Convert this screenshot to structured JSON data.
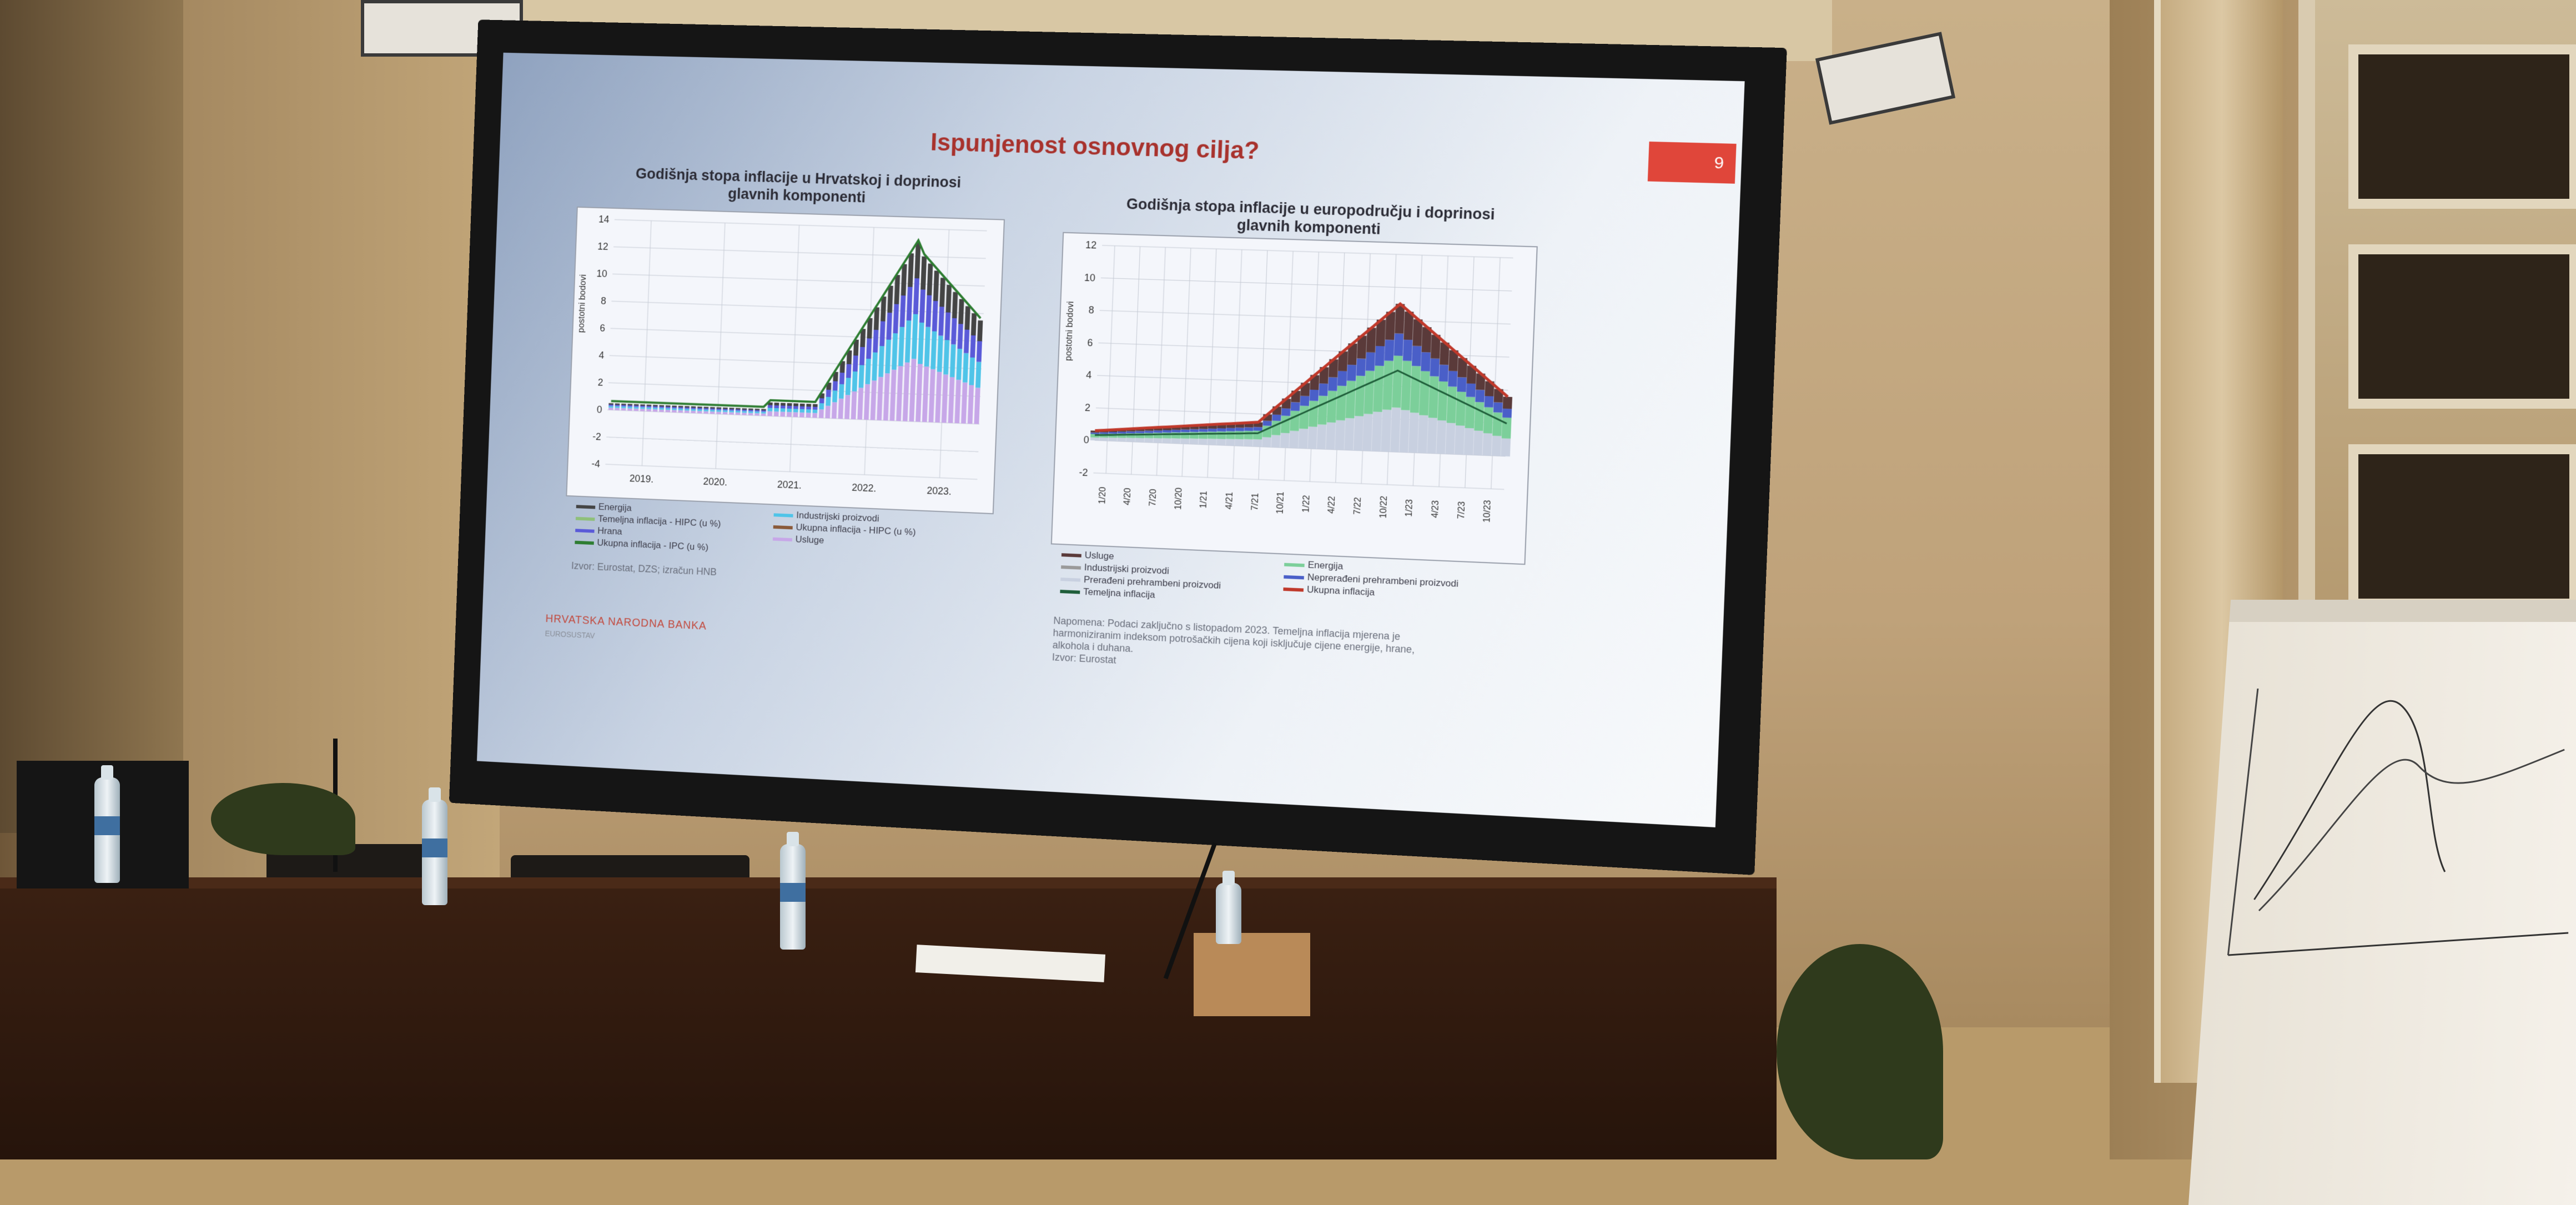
{
  "slide": {
    "title": "Ispunjenost osnovnog cilja?",
    "page_number": "9",
    "footer_org": "HRVATSKA NARODNA BANKA",
    "footer_sub": "EUROSUSTAV"
  },
  "left_chart": {
    "title_line1": "Godišnja stopa inflacije u Hrvatskoj i doprinosi",
    "title_line2": "glavnih komponenti",
    "ylabel": "postotni bodovi",
    "yticks": [
      "14",
      "12",
      "10",
      "8",
      "6",
      "4",
      "2",
      "0",
      "-2",
      "-4"
    ],
    "xticks": [
      "2019.",
      "2020.",
      "2021.",
      "2022.",
      "2023."
    ],
    "legend": [
      {
        "label": "Energija",
        "color": "#444444"
      },
      {
        "label": "Industrijski proizvodi",
        "color": "#4fc4e8"
      },
      {
        "label": "Temeljna inflacija - HIPC (u %)",
        "color": "#8fc07a"
      },
      {
        "label": "Ukupna inflacija - HIPC (u %)",
        "color": "#8a5a3a"
      },
      {
        "label": "Hrana",
        "color": "#5a5ad8"
      },
      {
        "label": "Usluge",
        "color": "#c7a7e8"
      },
      {
        "label": "Ukupna inflacija - IPC (u %)",
        "color": "#2e7d32"
      }
    ],
    "source": "Izvor: Eurostat, DZS; izračun HNB"
  },
  "right_chart": {
    "title_line1": "Godišnja stopa inflacije u europodručju i doprinosi",
    "title_line2": "glavnih komponenti",
    "ylabel": "postotni bodovi",
    "yticks": [
      "12",
      "10",
      "8",
      "6",
      "4",
      "2",
      "0",
      "-2"
    ],
    "xticks": [
      "1/20",
      "4/20",
      "7/20",
      "10/20",
      "1/21",
      "4/21",
      "7/21",
      "10/21",
      "1/22",
      "4/22",
      "7/22",
      "10/22",
      "1/23",
      "4/23",
      "7/23",
      "10/23"
    ],
    "legend": [
      {
        "label": "Usluge",
        "color": "#5a3a3a"
      },
      {
        "label": "Energija",
        "color": "#7ccf9a"
      },
      {
        "label": "Industrijski proizvodi",
        "color": "#9a9a9a"
      },
      {
        "label": "Neprerađeni prehrambeni proizvodi",
        "color": "#4a5fc8"
      },
      {
        "label": "Prerađeni prehrambeni proizvodi",
        "color": "#c8d0e0"
      },
      {
        "label": "Ukupna inflacija",
        "color": "#c0392b"
      },
      {
        "label": "Temeljna inflacija",
        "color": "#1f5e3a"
      }
    ],
    "note_line1": "Napomena: Podaci zaključno s listopadom 2023. Temeljna inflacija mjerena je",
    "note_line2": "harmoniziranim indeksom potrošačkih cijena koji isključuje cijene energije, hrane,",
    "note_line3": "alkohola i duhana.",
    "source": "Izvor: Eurostat"
  }
}
